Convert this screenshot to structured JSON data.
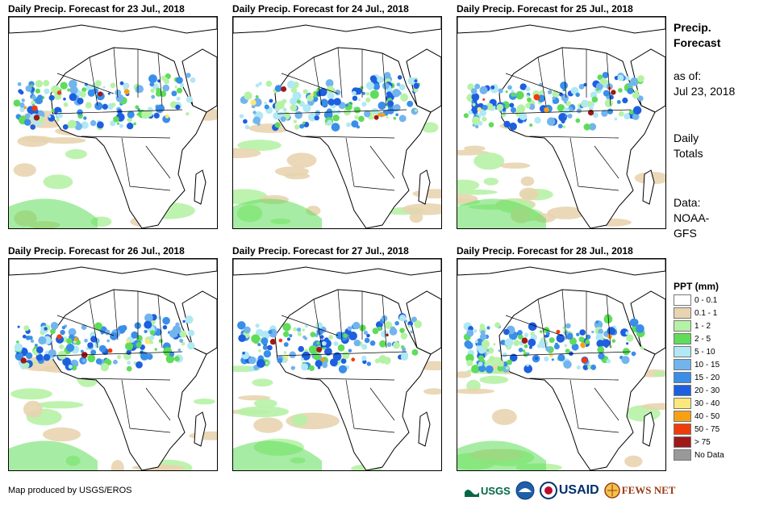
{
  "panels": [
    {
      "title": "Daily Precip. Forecast for 23 Jul., 2018"
    },
    {
      "title": "Daily Precip. Forecast for 24 Jul., 2018"
    },
    {
      "title": "Daily Precip. Forecast for 25 Jul., 2018"
    },
    {
      "title": "Daily Precip. Forecast for 26 Jul., 2018"
    },
    {
      "title": "Daily Precip. Forecast for 27 Jul., 2018"
    },
    {
      "title": "Daily Precip. Forecast for 28 Jul., 2018"
    }
  ],
  "sidebar": {
    "title_line1": "Precip.",
    "title_line2": "Forecast",
    "asof_line1": "as of:",
    "asof_line2": "Jul 23, 2018",
    "totals_line1": "Daily",
    "totals_line2": "Totals",
    "data_line1": "Data:",
    "data_line2": "NOAA-",
    "data_line3": "GFS"
  },
  "legend": {
    "title": "PPT (mm)",
    "items": [
      {
        "label": "0 - 0.1",
        "color": "#ffffff"
      },
      {
        "label": "0.1 - 1",
        "color": "#e8d4b0"
      },
      {
        "label": "1 - 2",
        "color": "#b6f2a6"
      },
      {
        "label": "2 - 5",
        "color": "#5fdc5a"
      },
      {
        "label": "5 - 10",
        "color": "#b0e8f4"
      },
      {
        "label": "10 - 15",
        "color": "#72b4ee"
      },
      {
        "label": "15 - 20",
        "color": "#3a8ee8"
      },
      {
        "label": "20 - 30",
        "color": "#1e5fe0"
      },
      {
        "label": "30 - 40",
        "color": "#fce87a"
      },
      {
        "label": "40 - 50",
        "color": "#f8a014"
      },
      {
        "label": "50 - 75",
        "color": "#f03c0a"
      },
      {
        "label": "> 75",
        "color": "#a01818"
      },
      {
        "label": "No Data",
        "color": "#999999"
      }
    ]
  },
  "credit": "Map produced by USGS/EROS",
  "logos": {
    "usgs": "USGS",
    "usaid": "USAID",
    "fewsnet": "FEWS NET"
  }
}
